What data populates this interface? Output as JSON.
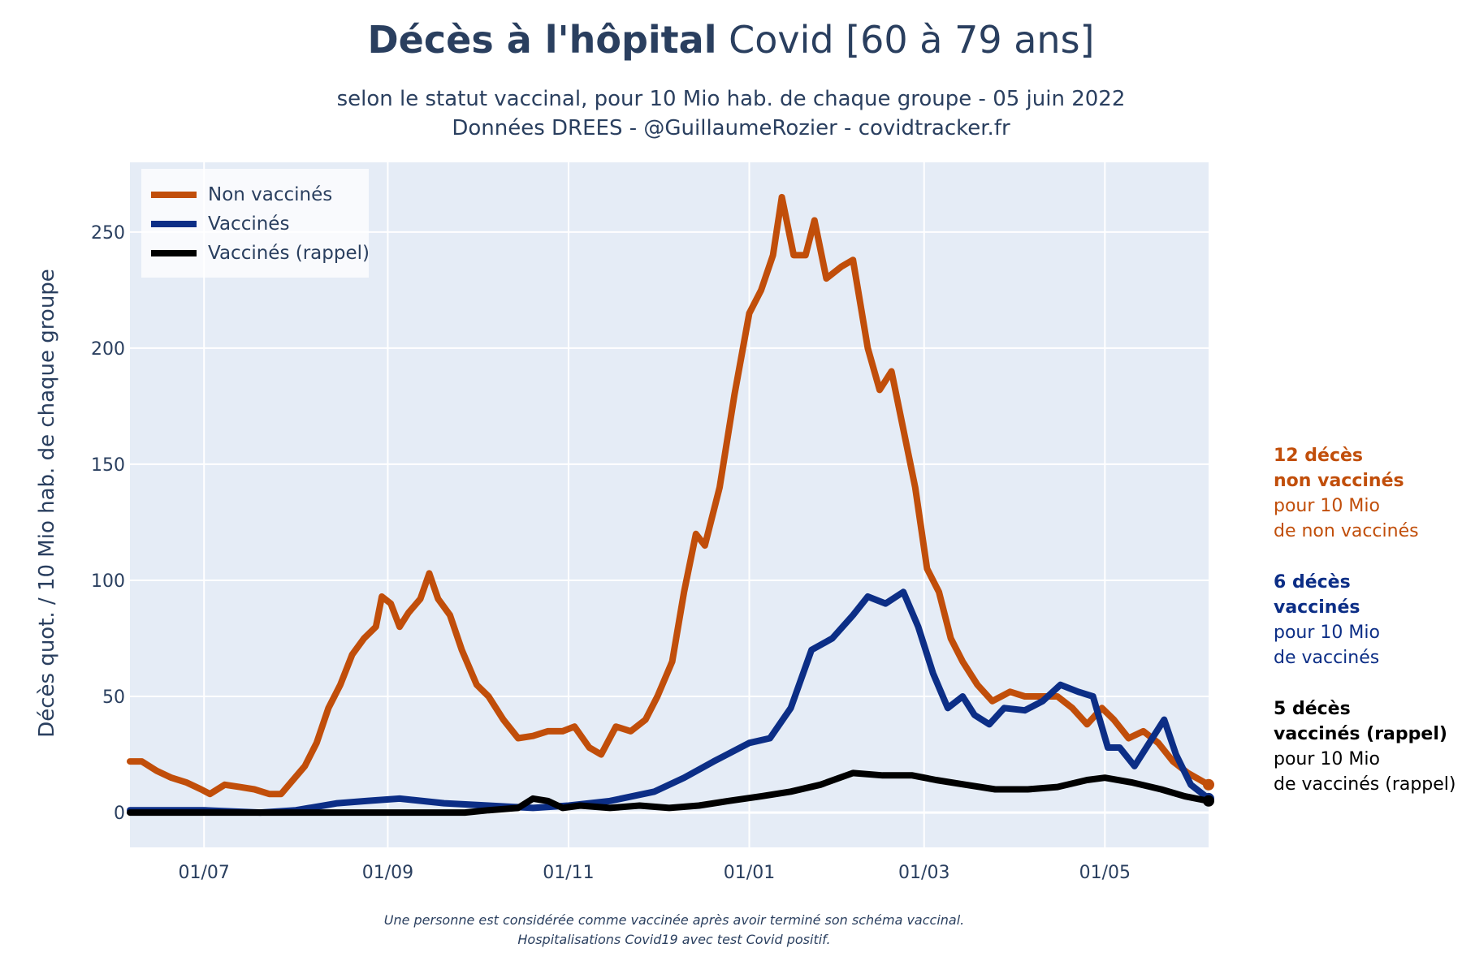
{
  "title_bold": "Décès à l'hôpital",
  "title_rest": "Covid [60 à 79 ans]",
  "subtitle_line1": "selon le statut vaccinal, pour 10 Mio hab. de chaque groupe - 05 juin 2022",
  "subtitle_line2": "Données DREES - @GuillaumeRozier - covidtracker.fr",
  "footnote_line1": "Une personne est considérée comme vaccinée après avoir terminé son schéma vaccinal.",
  "footnote_line2": "Hospitalisations Covid19 avec test Covid positif.",
  "colors": {
    "non_vaccines": "#c14e0a",
    "vaccines": "#0c2e86",
    "rappel": "#000000",
    "plot_bg": "#e5ecf6",
    "grid": "#ffffff"
  },
  "annotations": {
    "non_vaccines": {
      "bold1": "12 décès",
      "bold2": "non vaccinés",
      "line3": "pour 10 Mio",
      "line4": "de non vaccinés"
    },
    "vaccines": {
      "bold1": "6 décès",
      "bold2": "vaccinés",
      "line3": "pour 10 Mio",
      "line4": "de vaccinés"
    },
    "rappel": {
      "bold1": "5 décès",
      "bold2": "vaccinés (rappel)",
      "line3": "pour 10 Mio",
      "line4": "de vaccinés (rappel)"
    }
  },
  "chart_data": {
    "type": "line",
    "title": "Décès à l'hôpital Covid [60 à 79 ans]",
    "xlabel": "",
    "ylabel": "Décès quot. / 10 Mio hab. de chaque groupe",
    "x_type": "date",
    "xlim": [
      "2021-06-06",
      "2022-06-05"
    ],
    "ylim": [
      -15,
      280
    ],
    "y_ticks": [
      0,
      50,
      100,
      150,
      200,
      250
    ],
    "x_ticks": [
      {
        "date": "2021-07-01",
        "label": "01/07"
      },
      {
        "date": "2021-09-01",
        "label": "01/09"
      },
      {
        "date": "2021-11-01",
        "label": "01/11"
      },
      {
        "date": "2022-01-01",
        "label": "01/01"
      },
      {
        "date": "2022-03-01",
        "label": "01/03"
      },
      {
        "date": "2022-05-01",
        "label": "01/05"
      }
    ],
    "grid": true,
    "legend_position": "top-left",
    "series": [
      {
        "name": "Non vaccinés",
        "color": "#c14e0a",
        "points": [
          [
            "2021-06-06",
            22
          ],
          [
            "2021-06-10",
            22
          ],
          [
            "2021-06-15",
            18
          ],
          [
            "2021-06-20",
            15
          ],
          [
            "2021-06-25",
            13
          ],
          [
            "2021-06-30",
            10
          ],
          [
            "2021-07-03",
            8
          ],
          [
            "2021-07-08",
            12
          ],
          [
            "2021-07-13",
            11
          ],
          [
            "2021-07-18",
            10
          ],
          [
            "2021-07-23",
            8
          ],
          [
            "2021-07-27",
            8
          ],
          [
            "2021-07-31",
            14
          ],
          [
            "2021-08-04",
            20
          ],
          [
            "2021-08-08",
            30
          ],
          [
            "2021-08-12",
            45
          ],
          [
            "2021-08-16",
            55
          ],
          [
            "2021-08-20",
            68
          ],
          [
            "2021-08-24",
            75
          ],
          [
            "2021-08-28",
            80
          ],
          [
            "2021-08-30",
            93
          ],
          [
            "2021-09-02",
            90
          ],
          [
            "2021-09-05",
            80
          ],
          [
            "2021-09-08",
            86
          ],
          [
            "2021-09-12",
            92
          ],
          [
            "2021-09-15",
            103
          ],
          [
            "2021-09-18",
            92
          ],
          [
            "2021-09-22",
            85
          ],
          [
            "2021-09-26",
            70
          ],
          [
            "2021-10-01",
            55
          ],
          [
            "2021-10-05",
            50
          ],
          [
            "2021-10-10",
            40
          ],
          [
            "2021-10-15",
            32
          ],
          [
            "2021-10-20",
            33
          ],
          [
            "2021-10-25",
            35
          ],
          [
            "2021-10-30",
            35
          ],
          [
            "2021-11-03",
            37
          ],
          [
            "2021-11-08",
            28
          ],
          [
            "2021-11-12",
            25
          ],
          [
            "2021-11-17",
            37
          ],
          [
            "2021-11-22",
            35
          ],
          [
            "2021-11-27",
            40
          ],
          [
            "2021-12-01",
            50
          ],
          [
            "2021-12-06",
            65
          ],
          [
            "2021-12-10",
            95
          ],
          [
            "2021-12-14",
            120
          ],
          [
            "2021-12-17",
            115
          ],
          [
            "2021-12-22",
            140
          ],
          [
            "2021-12-27",
            180
          ],
          [
            "2022-01-01",
            215
          ],
          [
            "2022-01-05",
            225
          ],
          [
            "2022-01-09",
            240
          ],
          [
            "2022-01-12",
            265
          ],
          [
            "2022-01-16",
            240
          ],
          [
            "2022-01-20",
            240
          ],
          [
            "2022-01-23",
            255
          ],
          [
            "2022-01-27",
            230
          ],
          [
            "2022-02-01",
            235
          ],
          [
            "2022-02-05",
            238
          ],
          [
            "2022-02-10",
            200
          ],
          [
            "2022-02-14",
            182
          ],
          [
            "2022-02-18",
            190
          ],
          [
            "2022-02-22",
            165
          ],
          [
            "2022-02-26",
            140
          ],
          [
            "2022-03-02",
            105
          ],
          [
            "2022-03-06",
            95
          ],
          [
            "2022-03-10",
            75
          ],
          [
            "2022-03-14",
            65
          ],
          [
            "2022-03-19",
            55
          ],
          [
            "2022-03-24",
            48
          ],
          [
            "2022-03-30",
            52
          ],
          [
            "2022-04-04",
            50
          ],
          [
            "2022-04-10",
            50
          ],
          [
            "2022-04-15",
            50
          ],
          [
            "2022-04-20",
            45
          ],
          [
            "2022-04-25",
            38
          ],
          [
            "2022-04-30",
            45
          ],
          [
            "2022-05-04",
            40
          ],
          [
            "2022-05-09",
            32
          ],
          [
            "2022-05-14",
            35
          ],
          [
            "2022-05-19",
            30
          ],
          [
            "2022-05-24",
            22
          ],
          [
            "2022-05-29",
            17
          ],
          [
            "2022-06-05",
            12
          ]
        ]
      },
      {
        "name": "Vaccinés",
        "color": "#0c2e86",
        "points": [
          [
            "2021-06-06",
            1
          ],
          [
            "2021-07-01",
            1
          ],
          [
            "2021-07-20",
            0
          ],
          [
            "2021-08-01",
            1
          ],
          [
            "2021-08-15",
            4
          ],
          [
            "2021-08-25",
            5
          ],
          [
            "2021-09-05",
            6
          ],
          [
            "2021-09-20",
            4
          ],
          [
            "2021-10-05",
            3
          ],
          [
            "2021-10-20",
            2
          ],
          [
            "2021-11-01",
            3
          ],
          [
            "2021-11-15",
            5
          ],
          [
            "2021-11-30",
            9
          ],
          [
            "2021-12-10",
            15
          ],
          [
            "2021-12-20",
            22
          ],
          [
            "2022-01-01",
            30
          ],
          [
            "2022-01-08",
            32
          ],
          [
            "2022-01-15",
            45
          ],
          [
            "2022-01-22",
            70
          ],
          [
            "2022-01-29",
            75
          ],
          [
            "2022-02-05",
            85
          ],
          [
            "2022-02-10",
            93
          ],
          [
            "2022-02-16",
            90
          ],
          [
            "2022-02-22",
            95
          ],
          [
            "2022-02-27",
            80
          ],
          [
            "2022-03-04",
            60
          ],
          [
            "2022-03-09",
            45
          ],
          [
            "2022-03-14",
            50
          ],
          [
            "2022-03-18",
            42
          ],
          [
            "2022-03-23",
            38
          ],
          [
            "2022-03-28",
            45
          ],
          [
            "2022-04-04",
            44
          ],
          [
            "2022-04-10",
            48
          ],
          [
            "2022-04-16",
            55
          ],
          [
            "2022-04-22",
            52
          ],
          [
            "2022-04-27",
            50
          ],
          [
            "2022-05-02",
            28
          ],
          [
            "2022-05-06",
            28
          ],
          [
            "2022-05-11",
            20
          ],
          [
            "2022-05-16",
            30
          ],
          [
            "2022-05-21",
            40
          ],
          [
            "2022-05-25",
            25
          ],
          [
            "2022-05-30",
            12
          ],
          [
            "2022-06-05",
            6
          ]
        ]
      },
      {
        "name": "Vaccinés (rappel)",
        "color": "#000000",
        "points": [
          [
            "2021-06-06",
            0
          ],
          [
            "2021-09-27",
            0
          ],
          [
            "2021-10-05",
            1
          ],
          [
            "2021-10-15",
            2
          ],
          [
            "2021-10-20",
            6
          ],
          [
            "2021-10-25",
            5
          ],
          [
            "2021-10-30",
            2
          ],
          [
            "2021-11-05",
            3
          ],
          [
            "2021-11-15",
            2
          ],
          [
            "2021-11-25",
            3
          ],
          [
            "2021-12-05",
            2
          ],
          [
            "2021-12-15",
            3
          ],
          [
            "2021-12-25",
            5
          ],
          [
            "2022-01-05",
            7
          ],
          [
            "2022-01-15",
            9
          ],
          [
            "2022-01-25",
            12
          ],
          [
            "2022-02-05",
            17
          ],
          [
            "2022-02-15",
            16
          ],
          [
            "2022-02-25",
            16
          ],
          [
            "2022-03-05",
            14
          ],
          [
            "2022-03-15",
            12
          ],
          [
            "2022-03-25",
            10
          ],
          [
            "2022-04-05",
            10
          ],
          [
            "2022-04-15",
            11
          ],
          [
            "2022-04-25",
            14
          ],
          [
            "2022-05-01",
            15
          ],
          [
            "2022-05-10",
            13
          ],
          [
            "2022-05-20",
            10
          ],
          [
            "2022-05-28",
            7
          ],
          [
            "2022-06-05",
            5
          ]
        ]
      }
    ]
  }
}
